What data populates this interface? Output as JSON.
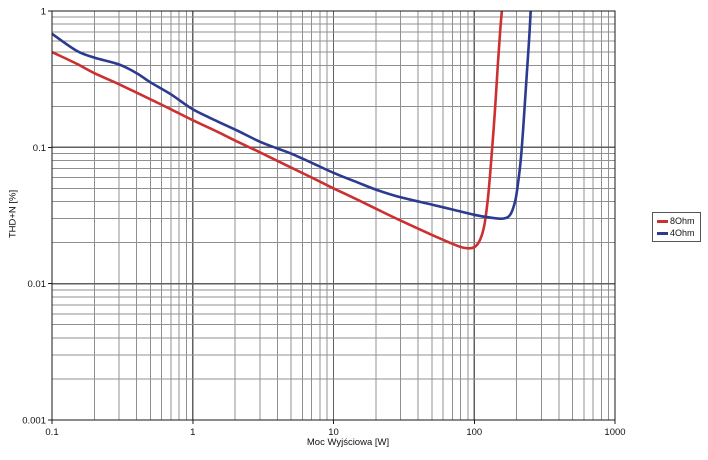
{
  "axes": {
    "xlabel": "Moc Wyjściowa [W]",
    "ylabel": "THD+N [%]",
    "xticks": [
      {
        "v": 0.1,
        "label": "0.1"
      },
      {
        "v": 1,
        "label": "1"
      },
      {
        "v": 10,
        "label": "10"
      },
      {
        "v": 100,
        "label": "100"
      },
      {
        "v": 1000,
        "label": "1000"
      }
    ],
    "yticks": [
      {
        "v": 1,
        "label": "1"
      },
      {
        "v": 0.1,
        "label": "0.1"
      },
      {
        "v": 0.01,
        "label": "0.01"
      },
      {
        "v": 0.001,
        "label": "0.001"
      }
    ]
  },
  "legend": {
    "items": [
      {
        "label": "8Ohm",
        "color": "#cc3030"
      },
      {
        "label": "4Ohm",
        "color": "#2c3a90"
      }
    ]
  },
  "colors": {
    "grid_minor": "#909090",
    "grid_major": "#606060",
    "axis_box": "#1a1a1a",
    "text": "#111111"
  },
  "chart_data": {
    "type": "line",
    "title": "",
    "xlabel": "Moc Wyjściowa [W]",
    "ylabel": "THD+N [%]",
    "x_scale": "log",
    "y_scale": "log",
    "xlim": [
      0.1,
      1000
    ],
    "ylim": [
      0.001,
      1
    ],
    "grid": "full log grid (major + minor), gray lines on white",
    "legend_position": "outside right, small framed box",
    "series": [
      {
        "name": "8Ohm",
        "color": "#cc3030",
        "points": [
          [
            0.1,
            0.5
          ],
          [
            0.15,
            0.41
          ],
          [
            0.2,
            0.35
          ],
          [
            0.3,
            0.29
          ],
          [
            0.5,
            0.225
          ],
          [
            0.7,
            0.19
          ],
          [
            1,
            0.158
          ],
          [
            1.5,
            0.13
          ],
          [
            2,
            0.112
          ],
          [
            3,
            0.092
          ],
          [
            5,
            0.071
          ],
          [
            7,
            0.06
          ],
          [
            10,
            0.05
          ],
          [
            15,
            0.041
          ],
          [
            20,
            0.0355
          ],
          [
            30,
            0.029
          ],
          [
            50,
            0.0228
          ],
          [
            70,
            0.0196
          ],
          [
            85,
            0.0183
          ],
          [
            100,
            0.0185
          ],
          [
            110,
            0.021
          ],
          [
            118,
            0.027
          ],
          [
            125,
            0.042
          ],
          [
            132,
            0.08
          ],
          [
            140,
            0.18
          ],
          [
            147,
            0.4
          ],
          [
            153,
            0.72
          ],
          [
            157,
            1.0
          ]
        ]
      },
      {
        "name": "4Ohm",
        "color": "#2c3a90",
        "points": [
          [
            0.1,
            0.68
          ],
          [
            0.15,
            0.51
          ],
          [
            0.2,
            0.455
          ],
          [
            0.3,
            0.405
          ],
          [
            0.4,
            0.35
          ],
          [
            0.5,
            0.3
          ],
          [
            0.7,
            0.245
          ],
          [
            1,
            0.19
          ],
          [
            1.5,
            0.155
          ],
          [
            2,
            0.135
          ],
          [
            3,
            0.11
          ],
          [
            4,
            0.098
          ],
          [
            5,
            0.09
          ],
          [
            7,
            0.077
          ],
          [
            10,
            0.065
          ],
          [
            15,
            0.055
          ],
          [
            20,
            0.049
          ],
          [
            30,
            0.043
          ],
          [
            50,
            0.038
          ],
          [
            70,
            0.035
          ],
          [
            100,
            0.032
          ],
          [
            130,
            0.0305
          ],
          [
            160,
            0.03
          ],
          [
            180,
            0.032
          ],
          [
            195,
            0.04
          ],
          [
            205,
            0.055
          ],
          [
            215,
            0.085
          ],
          [
            225,
            0.16
          ],
          [
            235,
            0.32
          ],
          [
            245,
            0.6
          ],
          [
            252,
            1.0
          ]
        ]
      }
    ]
  }
}
